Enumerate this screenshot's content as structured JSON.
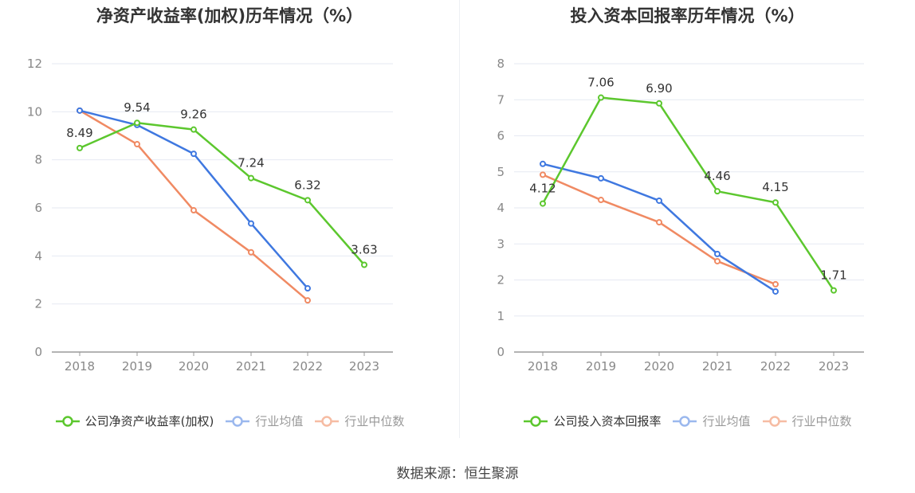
{
  "source": "数据来源：恒生聚源",
  "colors": {
    "company": "#5cc72e",
    "industry_avg": "#3f78e0",
    "industry_median": "#f08a63"
  },
  "chart_data": [
    {
      "type": "line",
      "title": "净资产收益率(加权)历年情况（%）",
      "categories": [
        "2018",
        "2019",
        "2020",
        "2021",
        "2022",
        "2023"
      ],
      "ylim": [
        0,
        12
      ],
      "yticks": [
        "0",
        "2",
        "4",
        "6",
        "8",
        "10",
        "12"
      ],
      "grid": true,
      "legend_position": "bottom",
      "series": [
        {
          "name": "公司净资产收益率(加权)",
          "values": [
            8.49,
            9.54,
            9.26,
            7.24,
            6.32,
            3.63
          ],
          "labels": [
            "8.49",
            "9.54",
            "9.26",
            "7.24",
            "6.32",
            "3.63"
          ]
        },
        {
          "name": "行业均值",
          "values": [
            10.05,
            9.45,
            8.25,
            5.35,
            2.65,
            null
          ]
        },
        {
          "name": "行业中位数",
          "values": [
            10.05,
            8.65,
            5.9,
            4.15,
            2.15,
            null
          ]
        }
      ]
    },
    {
      "type": "line",
      "title": "投入资本回报率历年情况（%）",
      "categories": [
        "2018",
        "2019",
        "2020",
        "2021",
        "2022",
        "2023"
      ],
      "ylim": [
        0,
        8
      ],
      "yticks": [
        "0",
        "1",
        "2",
        "3",
        "4",
        "5",
        "6",
        "7",
        "8"
      ],
      "grid": true,
      "legend_position": "bottom",
      "series": [
        {
          "name": "公司投入资本回报率",
          "values": [
            4.12,
            7.06,
            6.9,
            4.46,
            4.15,
            1.71
          ],
          "labels": [
            "4.12",
            "7.06",
            "6.90",
            "4.46",
            "4.15",
            "1.71"
          ]
        },
        {
          "name": "行业均值",
          "values": [
            5.22,
            4.82,
            4.2,
            2.72,
            1.68,
            null
          ]
        },
        {
          "name": "行业中位数",
          "values": [
            4.92,
            4.22,
            3.6,
            2.52,
            1.88,
            null
          ]
        }
      ]
    }
  ]
}
